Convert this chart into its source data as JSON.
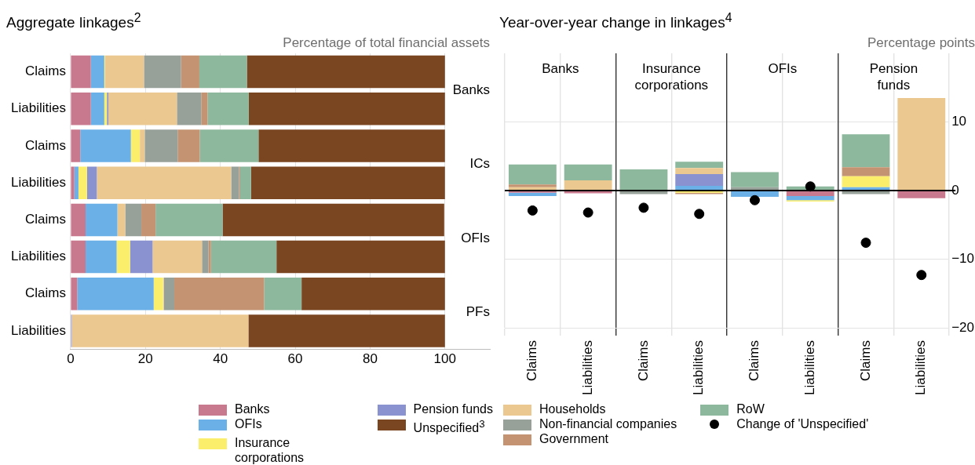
{
  "chart_data": [
    {
      "type": "bar",
      "orientation": "horizontal",
      "stacked": true,
      "title": "Aggregate linkages$^{2}$",
      "xlabel": "Percentage of total financial assets",
      "categories": [
        "Claims",
        "Liabilities",
        "Claims",
        "Liabilities",
        "Claims",
        "Liabilities",
        "Claims",
        "Liabilities"
      ],
      "series": [
        {
          "name": "Banks",
          "color": "#c9798e",
          "values": [
            5.4,
            5.4,
            2.6,
            1.0,
            4.0,
            4.0,
            1.8,
            null
          ]
        },
        {
          "name": "OFIs",
          "color": "#6cb0e8",
          "values": [
            3.6,
            3.6,
            13.5,
            1.1,
            8.5,
            8.3,
            20.4,
            null
          ]
        },
        {
          "name": "Insurance corporations",
          "color": "#fbee6b",
          "values": [
            0.2,
            0.7,
            2.4,
            2.3,
            null,
            3.6,
            2.5,
            null
          ]
        },
        {
          "name": "Pension funds",
          "color": "#8a93d0",
          "values": [
            null,
            0.4,
            null,
            2.6,
            null,
            6.0,
            null,
            0.3
          ]
        },
        {
          "color": "#ecc891",
          "values": [
            10.4,
            18.3,
            1.3,
            35.9,
            2.1,
            13.2,
            0.2,
            47.2
          ]
        },
        {
          "color": "#98a09a",
          "values": [
            9.9,
            6.5,
            8.8,
            2.1,
            4.3,
            1.7,
            2.8,
            null
          ]
        },
        {
          "color": "#c49472",
          "values": [
            4.9,
            1.7,
            5.9,
            0.3,
            3.8,
            0.7,
            24.0,
            null
          ]
        },
        {
          "color": "#8eb89e",
          "values": [
            12.7,
            11.0,
            15.7,
            2.9,
            17.9,
            17.5,
            10.0,
            null
          ]
        },
        {
          "name": "Unspecified$^{3}$",
          "color": "#7a4521",
          "values": [
            52.9,
            52.4,
            49.8,
            51.8,
            59.2,
            45.0,
            38.3,
            52.5
          ]
        }
      ],
      "xlim": [
        0,
        112
      ],
      "xticks": [
        0,
        20,
        40,
        60,
        80,
        100
      ],
      "grid": "x",
      "legend": "bottom",
      "annotations": [
        "Banks",
        "ICs",
        "OFIs",
        "PFs"
      ]
    },
    {
      "type": "bar",
      "stacked": true,
      "title": "Year-over-year change in linkages$^{4}$",
      "ylabel": "Percentage points",
      "categories": [
        "Claims",
        "Liabilities",
        "Claims",
        "Liabilities",
        "Claims",
        "Liabilities",
        "Claims",
        "Liabilities"
      ],
      "series": [
        {
          "color": "#c9798e",
          "values": [
            -0.3,
            -0.4,
            null,
            null,
            null,
            -0.8,
            null,
            -1.1
          ]
        },
        {
          "color": "#6cb0e8",
          "values": [
            -0.5,
            null,
            null,
            0.7,
            -0.9,
            -0.6,
            0.5,
            null
          ]
        },
        {
          "color": "#fbee6b",
          "values": [
            null,
            null,
            null,
            -0.3,
            null,
            -0.2,
            1.6,
            null
          ]
        },
        {
          "color": "#8a93d0",
          "values": [
            null,
            null,
            null,
            1.7,
            null,
            null,
            null,
            null
          ]
        },
        {
          "name": "Households",
          "color": "#ecc891",
          "values": [
            0.5,
            1.5,
            null,
            0.9,
            null,
            null,
            null,
            13.5
          ]
        },
        {
          "name": "Non-financial companies",
          "color": "#98a09a",
          "values": [
            null,
            null,
            -0.5,
            null,
            0.5,
            null,
            -0.5,
            null
          ]
        },
        {
          "name": "Government",
          "color": "#c49472",
          "values": [
            0.4,
            null,
            null,
            -0.2,
            null,
            null,
            1.3,
            null
          ]
        },
        {
          "name": "RoW",
          "color": "#8eb89e",
          "values": [
            2.9,
            2.3,
            3.1,
            0.9,
            2.2,
            0.6,
            4.8,
            null
          ]
        },
        {
          "name": "Change of 'Unspecified'",
          "type": "scatter",
          "color": "#000000",
          "values": [
            -2.9,
            -3.2,
            -2.5,
            -3.4,
            -1.4,
            0.6,
            -7.6,
            -12.3
          ]
        }
      ],
      "ylim": [
        -20,
        20
      ],
      "yticks": [
        {
          "value": -20,
          "label": "−20"
        },
        {
          "value": -10,
          "label": "−10"
        },
        0,
        10
      ],
      "grid": true,
      "marker": "circle",
      "legend": "bottom",
      "ref_lines": [
        {
          "axis": "y",
          "value": 0,
          "color": "#000000"
        }
      ],
      "annotations": [
        "Banks",
        "Insurance corporations",
        "OFIs",
        "Pension funds"
      ]
    }
  ]
}
